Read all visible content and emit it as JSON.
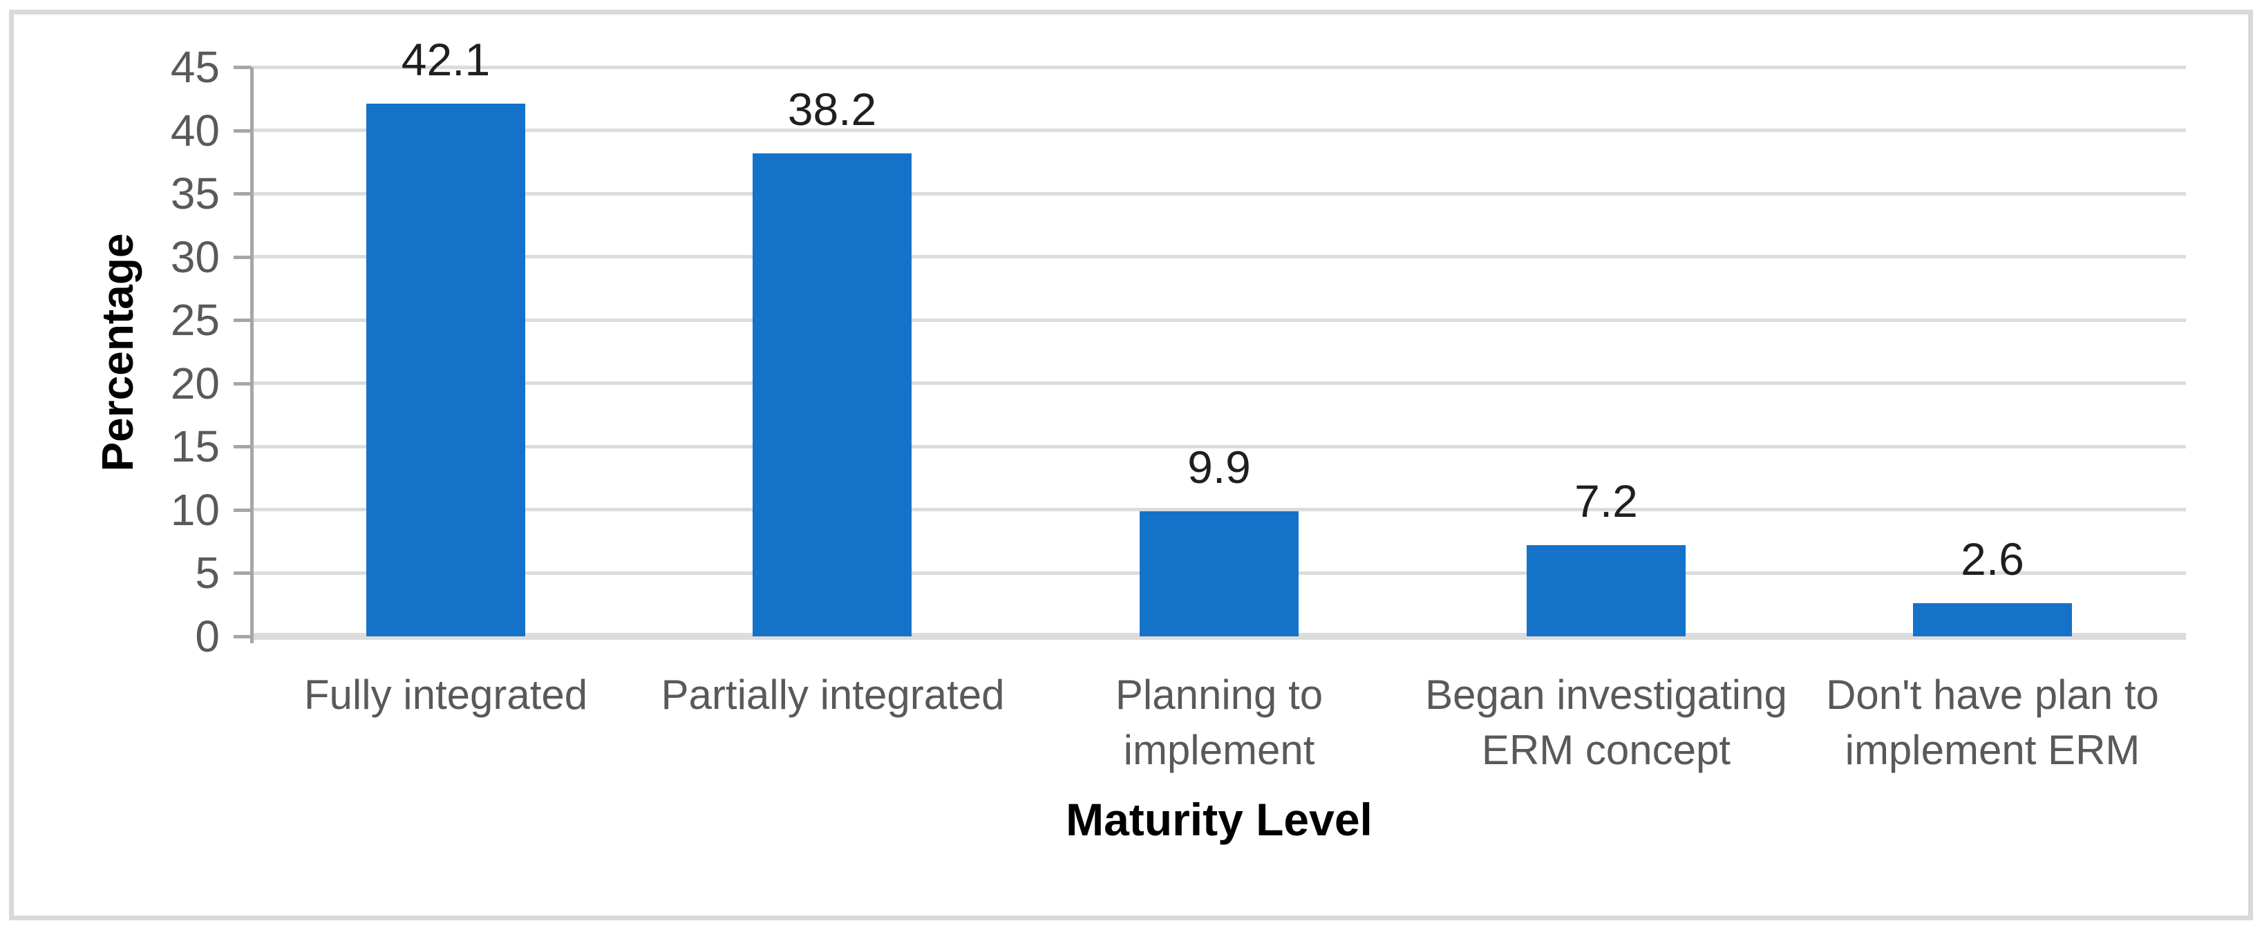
{
  "chart_data": {
    "type": "bar",
    "title": "",
    "categories": [
      "Fully integrated",
      "Partially integrated",
      "Planning to implement",
      "Began investigating ERM concept",
      "Don't have plan to implement ERM"
    ],
    "categories_wrapped": [
      "Fully integrated",
      "Partially integrated",
      "Planning to\nimplement",
      "Began investigating\nERM concept",
      "Don't have plan to\nimplement ERM"
    ],
    "values": [
      42.1,
      38.2,
      9.9,
      7.2,
      2.6
    ],
    "data_labels": [
      "42.1",
      "38.2",
      "9.9",
      "7.2",
      "2.6"
    ],
    "xlabel": "Maturity Level",
    "ylabel": "Percentage",
    "ylim": [
      0,
      45
    ],
    "ytick_step": 5,
    "yticks": [
      0,
      5,
      10,
      15,
      20,
      25,
      30,
      35,
      40,
      45
    ],
    "grid": true,
    "legend": "none",
    "colors": {
      "bar": "#1572C9",
      "gridline": "#dcdcdc",
      "axis_line": "#a6a6a6",
      "tick_label": "#595959",
      "category_label": "#595959",
      "data_label": "#1f1f1f",
      "axis_title": "#000000",
      "frame_border": "#d9d9d9",
      "background": "#ffffff"
    }
  }
}
